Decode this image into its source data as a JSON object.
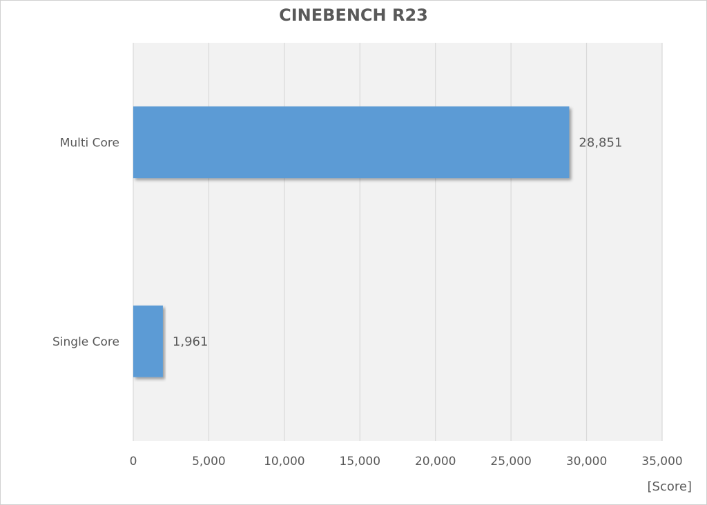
{
  "chart_data": {
    "type": "bar",
    "orientation": "horizontal",
    "title": "CINEBENCH R23",
    "unit_label": "[Score]",
    "categories": [
      "Multi Core",
      "Single Core"
    ],
    "values": [
      28851,
      1961
    ],
    "value_labels": [
      "28,851",
      "1,961"
    ],
    "xlim": [
      0,
      35000
    ],
    "x_ticks": [
      0,
      5000,
      10000,
      15000,
      20000,
      25000,
      30000,
      35000
    ],
    "x_tick_labels": [
      "0",
      "5,000",
      "10,000",
      "15,000",
      "20,000",
      "25,000",
      "30,000",
      "35,000"
    ],
    "grid": true,
    "bar_color": "#5b9bd5",
    "plot_background": "#f2f2f2",
    "gridline_color": "#d9d9d9"
  }
}
